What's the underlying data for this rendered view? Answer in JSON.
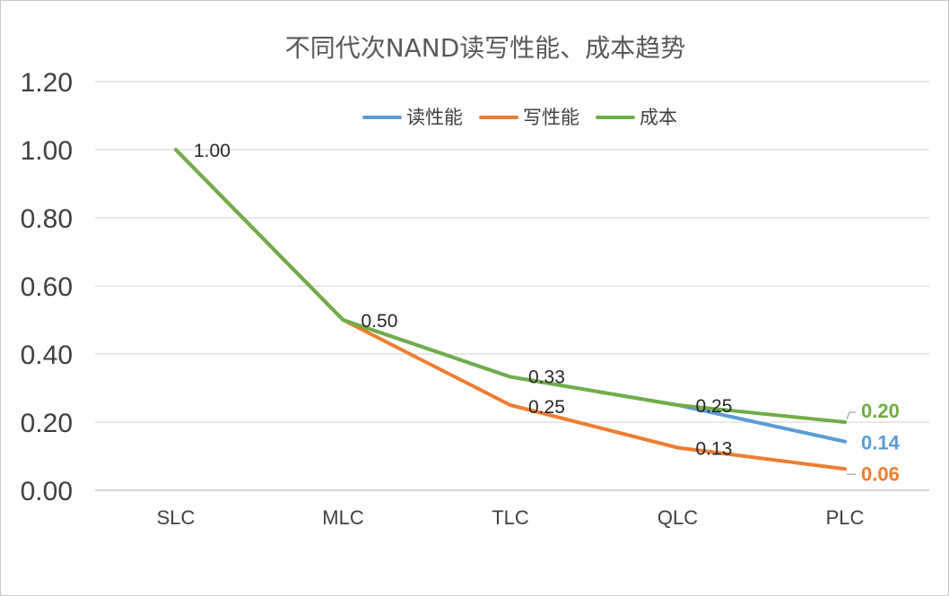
{
  "chart_data": {
    "type": "line",
    "title": "不同代次NAND读写性能、成本趋势",
    "categories": [
      "SLC",
      "MLC",
      "TLC",
      "QLC",
      "PLC"
    ],
    "ylim": [
      0,
      1.2
    ],
    "yticks": [
      "0.00",
      "0.20",
      "0.40",
      "0.60",
      "0.80",
      "1.00",
      "1.20"
    ],
    "ytick_values": [
      0,
      0.2,
      0.4,
      0.6,
      0.8,
      1.0,
      1.2
    ],
    "grid": true,
    "legend_position": "top-right",
    "series": [
      {
        "name": "读性能",
        "color": "#5B9BD5",
        "values": [
          1.0,
          0.5,
          0.333,
          0.25,
          0.143
        ]
      },
      {
        "name": "写性能",
        "color": "#ED7D31",
        "values": [
          1.0,
          0.5,
          0.25,
          0.125,
          0.0625
        ]
      },
      {
        "name": "成本",
        "color": "#70AD47",
        "values": [
          1.0,
          0.5,
          0.333,
          0.25,
          0.2
        ]
      }
    ],
    "data_labels": [
      {
        "text": "1.00",
        "series": "成本",
        "category": "SLC"
      },
      {
        "text": "0.50",
        "series": "成本",
        "category": "MLC"
      },
      {
        "text": "0.33",
        "series": "成本",
        "category": "TLC"
      },
      {
        "text": "0.25",
        "series": "写性能",
        "category": "TLC"
      },
      {
        "text": "0.25",
        "series": "成本",
        "category": "QLC"
      },
      {
        "text": "0.13",
        "series": "写性能",
        "category": "QLC"
      },
      {
        "text": "0.20",
        "series": "成本",
        "category": "PLC",
        "bold": true
      },
      {
        "text": "0.14",
        "series": "读性能",
        "category": "PLC",
        "bold": true
      },
      {
        "text": "0.06",
        "series": "写性能",
        "category": "PLC",
        "bold": true
      }
    ]
  }
}
